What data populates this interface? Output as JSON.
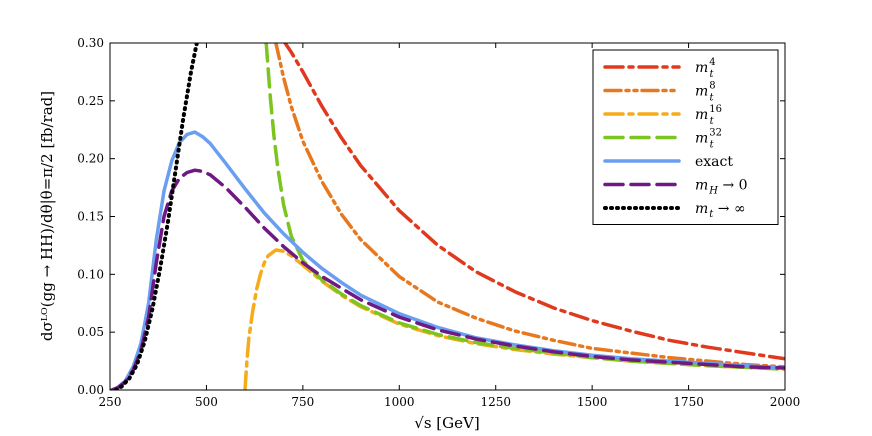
{
  "chart_data": {
    "type": "line",
    "xlabel": "√s  [GeV]",
    "ylabel": "dσᴸᴼ(gg → HH)/dθ|θ=π/2   [fb/rad]",
    "xlim": [
      250,
      2000
    ],
    "ylim": [
      0,
      0.3
    ],
    "xticks": [
      "250",
      "500",
      "750",
      "1000",
      "1250",
      "1500",
      "1750",
      "2000"
    ],
    "yticks": [
      "0.00",
      "0.05",
      "0.10",
      "0.15",
      "0.20",
      "0.25",
      "0.30"
    ],
    "grid": false,
    "legend_position": "top-right",
    "series": [
      {
        "name": "m_t^4",
        "legend_base": "m",
        "legend_sub": "t",
        "legend_sup": "4",
        "color": "#e03a1e",
        "style": "dashdot",
        "x": [
          700,
          720,
          750,
          800,
          850,
          900,
          1000,
          1100,
          1200,
          1300,
          1400,
          1500,
          1600,
          1700,
          1800,
          1900,
          2000
        ],
        "y": [
          0.302,
          0.292,
          0.275,
          0.245,
          0.218,
          0.194,
          0.155,
          0.125,
          0.102,
          0.085,
          0.071,
          0.06,
          0.051,
          0.043,
          0.037,
          0.032,
          0.027
        ]
      },
      {
        "name": "m_t^8",
        "legend_base": "m",
        "legend_sub": "t",
        "legend_sup": "8",
        "color": "#e8781e",
        "style": "dashdotdot",
        "x": [
          680,
          700,
          720,
          750,
          800,
          850,
          900,
          1000,
          1100,
          1200,
          1300,
          1400,
          1500,
          1600,
          1700,
          1800,
          1900,
          2000
        ],
        "y": [
          0.3,
          0.27,
          0.245,
          0.215,
          0.18,
          0.152,
          0.13,
          0.098,
          0.076,
          0.062,
          0.051,
          0.043,
          0.036,
          0.032,
          0.028,
          0.025,
          0.022,
          0.02
        ]
      },
      {
        "name": "m_t^16",
        "legend_base": "m",
        "legend_sub": "t",
        "legend_sup": "16",
        "color": "#f5ab1a",
        "style": "dashdot",
        "x": [
          600,
          605,
          610,
          620,
          630,
          640,
          650,
          660,
          680,
          700,
          720,
          750,
          800,
          850,
          900,
          1000,
          1100,
          1200,
          1300,
          1400,
          1500,
          1600,
          1700,
          1800,
          1900,
          2000
        ],
        "y": [
          0.0,
          0.025,
          0.045,
          0.068,
          0.087,
          0.1,
          0.11,
          0.116,
          0.121,
          0.12,
          0.116,
          0.108,
          0.094,
          0.082,
          0.072,
          0.057,
          0.047,
          0.04,
          0.035,
          0.031,
          0.028,
          0.025,
          0.023,
          0.021,
          0.0195,
          0.018
        ]
      },
      {
        "name": "m_t^32",
        "legend_base": "m",
        "legend_sub": "t",
        "legend_sup": "32",
        "color": "#7cc41e",
        "style": "dashed",
        "x": [
          655,
          665,
          675,
          685,
          700,
          720,
          750,
          800,
          850,
          900,
          1000,
          1100,
          1200,
          1300,
          1400,
          1500,
          1600,
          1700,
          1800,
          1900,
          2000
        ],
        "y": [
          0.3,
          0.255,
          0.22,
          0.192,
          0.16,
          0.133,
          0.112,
          0.095,
          0.083,
          0.073,
          0.058,
          0.048,
          0.041,
          0.036,
          0.032,
          0.028,
          0.025,
          0.023,
          0.021,
          0.0195,
          0.018
        ]
      },
      {
        "name": "exact",
        "legend_text": "exact",
        "color": "#6a9ef0",
        "style": "solid",
        "x": [
          255,
          270,
          290,
          310,
          330,
          350,
          370,
          390,
          410,
          430,
          450,
          470,
          490,
          510,
          550,
          600,
          650,
          700,
          750,
          800,
          850,
          900,
          1000,
          1100,
          1200,
          1300,
          1400,
          1500,
          1600,
          1700,
          1800,
          1900,
          2000
        ],
        "y": [
          0.0,
          0.002,
          0.008,
          0.02,
          0.04,
          0.075,
          0.13,
          0.172,
          0.198,
          0.214,
          0.221,
          0.223,
          0.219,
          0.213,
          0.196,
          0.174,
          0.153,
          0.135,
          0.119,
          0.105,
          0.093,
          0.082,
          0.066,
          0.054,
          0.045,
          0.039,
          0.034,
          0.03,
          0.027,
          0.025,
          0.023,
          0.021,
          0.019
        ]
      },
      {
        "name": "m_H → 0",
        "legend_base": "m",
        "legend_sub": "H",
        "legend_tail": " → 0",
        "color": "#6e1a82",
        "style": "dashed",
        "x": [
          255,
          270,
          290,
          310,
          330,
          350,
          370,
          390,
          410,
          430,
          450,
          470,
          490,
          510,
          550,
          600,
          650,
          700,
          750,
          800,
          850,
          900,
          1000,
          1100,
          1200,
          1300,
          1400,
          1500,
          1600,
          1700,
          1800,
          1900,
          2000
        ],
        "y": [
          0.0,
          0.002,
          0.007,
          0.017,
          0.034,
          0.063,
          0.11,
          0.15,
          0.172,
          0.183,
          0.188,
          0.19,
          0.189,
          0.186,
          0.175,
          0.158,
          0.14,
          0.124,
          0.11,
          0.098,
          0.088,
          0.078,
          0.063,
          0.052,
          0.044,
          0.038,
          0.033,
          0.029,
          0.026,
          0.024,
          0.022,
          0.02,
          0.019
        ]
      },
      {
        "name": "m_t → ∞",
        "legend_base": "m",
        "legend_sub": "t",
        "legend_tail": "  → ∞",
        "color": "#000000",
        "style": "dotted",
        "x": [
          265,
          280,
          300,
          320,
          340,
          360,
          380,
          400,
          420,
          440,
          460,
          475
        ],
        "y": [
          0.0,
          0.003,
          0.01,
          0.022,
          0.042,
          0.07,
          0.105,
          0.145,
          0.19,
          0.235,
          0.275,
          0.3
        ]
      }
    ]
  }
}
